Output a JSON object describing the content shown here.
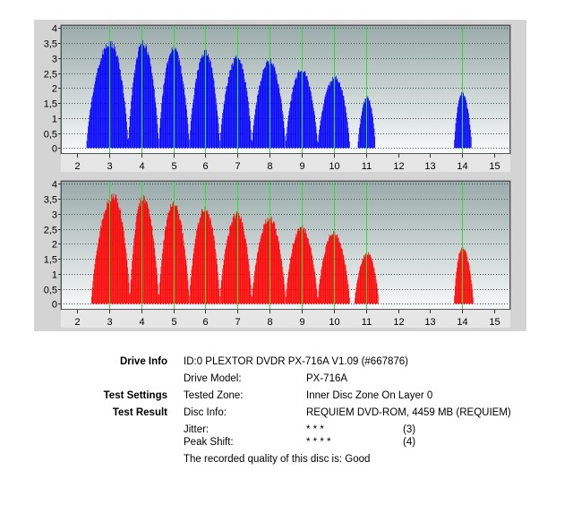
{
  "chart_data": [
    {
      "type": "bar",
      "title": "",
      "xlabel": "",
      "ylabel": "",
      "xlim": [
        1.5,
        15.5
      ],
      "ylim": [
        -0.2,
        4.1
      ],
      "x_ticks": [
        "2",
        "3",
        "4",
        "5",
        "6",
        "7",
        "8",
        "9",
        "10",
        "11",
        "12",
        "13",
        "14",
        "15"
      ],
      "y_ticks": [
        "0",
        "0,5",
        "1",
        "1,5",
        "2",
        "2,5",
        "3",
        "3,5",
        "4"
      ],
      "markers_x": [
        3,
        4,
        5,
        6,
        7,
        8,
        9,
        10,
        11,
        14
      ],
      "grid": true,
      "series": [
        {
          "color": "#0000ff",
          "humps": [
            {
              "start": 2.3,
              "end": 3.6,
              "peak_x": 3.05,
              "peak": 3.6
            },
            {
              "start": 3.6,
              "end": 4.55,
              "peak_x": 4.05,
              "peak": 3.6
            },
            {
              "start": 4.55,
              "end": 5.5,
              "peak_x": 5.0,
              "peak": 3.45
            },
            {
              "start": 5.5,
              "end": 6.45,
              "peak_x": 6.0,
              "peak": 3.3
            },
            {
              "start": 6.45,
              "end": 7.45,
              "peak_x": 7.0,
              "peak": 3.1
            },
            {
              "start": 7.45,
              "end": 8.5,
              "peak_x": 8.0,
              "peak": 3.0
            },
            {
              "start": 8.5,
              "end": 9.5,
              "peak_x": 9.0,
              "peak": 2.7
            },
            {
              "start": 9.5,
              "end": 10.5,
              "peak_x": 10.05,
              "peak": 2.45
            },
            {
              "start": 10.75,
              "end": 11.3,
              "peak_x": 11.05,
              "peak": 1.75
            },
            {
              "start": 13.75,
              "end": 14.3,
              "peak_x": 14.0,
              "peak": 1.9
            }
          ]
        }
      ]
    },
    {
      "type": "bar",
      "title": "",
      "xlabel": "",
      "ylabel": "",
      "xlim": [
        1.5,
        15.5
      ],
      "ylim": [
        -0.2,
        4.1
      ],
      "x_ticks": [
        "2",
        "3",
        "4",
        "5",
        "6",
        "7",
        "8",
        "9",
        "10",
        "11",
        "12",
        "13",
        "14",
        "15"
      ],
      "y_ticks": [
        "0",
        "0,5",
        "1",
        "1,5",
        "2",
        "2,5",
        "3",
        "3,5",
        "4"
      ],
      "markers_x": [
        3,
        4,
        5,
        6,
        7,
        8,
        9,
        10,
        11,
        14
      ],
      "grid": true,
      "series": [
        {
          "color": "#ff0000",
          "humps": [
            {
              "start": 2.45,
              "end": 3.65,
              "peak_x": 3.15,
              "peak": 3.7
            },
            {
              "start": 3.65,
              "end": 4.55,
              "peak_x": 4.05,
              "peak": 3.65
            },
            {
              "start": 4.55,
              "end": 5.5,
              "peak_x": 5.0,
              "peak": 3.45
            },
            {
              "start": 5.5,
              "end": 6.45,
              "peak_x": 6.0,
              "peak": 3.3
            },
            {
              "start": 6.45,
              "end": 7.45,
              "peak_x": 7.0,
              "peak": 3.1
            },
            {
              "start": 7.45,
              "end": 8.5,
              "peak_x": 8.0,
              "peak": 2.95
            },
            {
              "start": 8.5,
              "end": 9.5,
              "peak_x": 9.0,
              "peak": 2.65
            },
            {
              "start": 9.5,
              "end": 10.5,
              "peak_x": 10.0,
              "peak": 2.45
            },
            {
              "start": 10.65,
              "end": 11.4,
              "peak_x": 11.05,
              "peak": 1.75
            },
            {
              "start": 13.75,
              "end": 14.35,
              "peak_x": 14.0,
              "peak": 1.95
            }
          ]
        }
      ]
    }
  ],
  "info": {
    "drive_info_label": "Drive Info",
    "drive_info_value": "ID:0 PLEXTOR DVDR PX-716A V1.09 (#667876)",
    "drive_model_key": "Drive Model:",
    "drive_model_value": "PX-716A",
    "test_settings_label": "Test Settings",
    "tested_zone_key": "Tested Zone:",
    "tested_zone_value": "Inner Disc Zone On Layer 0",
    "test_result_label": "Test Result",
    "disc_info_key": "Disc Info:",
    "disc_info_value": "REQUIEM DVD-ROM, 4459 MB (REQUIEM)",
    "jitter_key": "Jitter:",
    "jitter_stars": "* * *",
    "jitter_score": "(3)",
    "peak_shift_key": "Peak Shift:",
    "peak_shift_stars": "* * * *",
    "peak_shift_score": "(4)",
    "quality_text": "The recorded quality of this disc is: Good"
  }
}
